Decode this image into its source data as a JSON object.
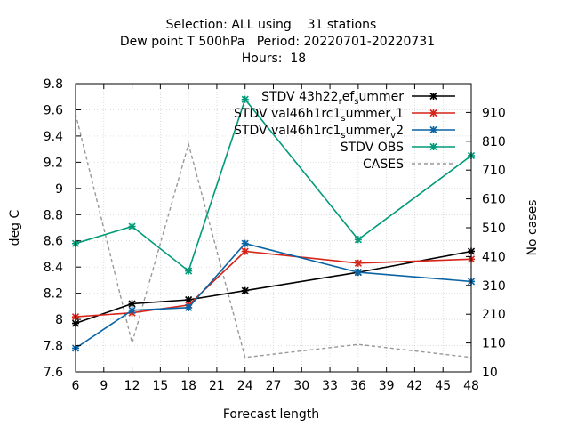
{
  "chart_data": {
    "type": "line",
    "title_lines": [
      "Selection: ALL using    31 stations",
      "Dew point T 500hPa   Period: 20220701-20220731",
      "Hours:  18"
    ],
    "xlabel": "Forecast length",
    "ylabel": "deg C",
    "y2label": "No cases",
    "xlim": [
      6,
      48
    ],
    "ylim": [
      7.6,
      9.8
    ],
    "y2lim": [
      10,
      1010
    ],
    "x_ticks": [
      6,
      9,
      12,
      15,
      18,
      21,
      24,
      27,
      30,
      33,
      36,
      39,
      42,
      45,
      48
    ],
    "y_ticks": [
      7.6,
      7.8,
      8,
      8.2,
      8.4,
      8.6,
      8.8,
      9,
      9.2,
      9.4,
      9.6,
      9.8
    ],
    "y_tick_labels": [
      "7.6",
      "7.8",
      "8",
      "8.2",
      "8.4",
      "8.6",
      "8.8",
      "9",
      "9.2",
      "9.4",
      "9.6",
      "9.8"
    ],
    "y2_ticks": [
      10,
      110,
      210,
      310,
      410,
      510,
      610,
      710,
      810,
      910
    ],
    "legend_position": "top-right",
    "series": [
      {
        "name": "STDV 43h22_ref_summer",
        "legend_parts": [
          [
            "STDV 43h22",
            "n"
          ],
          [
            "r",
            "sub"
          ],
          [
            "ef",
            "n"
          ],
          [
            "s",
            "sub"
          ],
          [
            "ummer",
            "n"
          ]
        ],
        "color": "#000000",
        "marker": "cross",
        "axis": "y",
        "x": [
          6,
          12,
          18,
          24,
          36,
          48
        ],
        "y": [
          7.97,
          8.12,
          8.15,
          8.22,
          8.36,
          8.52
        ]
      },
      {
        "name": "STDV val46h1rc1_summer_v1",
        "legend_parts": [
          [
            "STDV val46h1rc1",
            "n"
          ],
          [
            "s",
            "sub"
          ],
          [
            "ummer",
            "n"
          ],
          [
            "v",
            "sub"
          ],
          [
            "1",
            "n"
          ]
        ],
        "color": "#d62418",
        "marker": "cross",
        "axis": "y",
        "x": [
          6,
          12,
          18,
          24,
          36,
          48
        ],
        "y": [
          8.02,
          8.05,
          8.11,
          8.52,
          8.43,
          8.46
        ]
      },
      {
        "name": "STDV val46h1rc1_summer_v2",
        "legend_parts": [
          [
            "STDV val46h1rc1",
            "n"
          ],
          [
            "s",
            "sub"
          ],
          [
            "ummer",
            "n"
          ],
          [
            "v",
            "sub"
          ],
          [
            "2",
            "n"
          ]
        ],
        "color": "#0a64a4",
        "marker": "cross",
        "axis": "y",
        "x": [
          6,
          12,
          18,
          24,
          36,
          48
        ],
        "y": [
          7.78,
          8.07,
          8.09,
          8.58,
          8.36,
          8.29
        ]
      },
      {
        "name": "STDV OBS",
        "legend_parts": [
          [
            "STDV OBS",
            "n"
          ]
        ],
        "color": "#009a79",
        "marker": "cross",
        "axis": "y",
        "x": [
          6,
          12,
          18,
          24,
          36,
          48
        ],
        "y": [
          8.58,
          8.71,
          8.37,
          9.68,
          8.61,
          9.25
        ]
      },
      {
        "name": "CASES",
        "legend_parts": [
          [
            "CASES",
            "n"
          ]
        ],
        "color": "#999999",
        "marker": "none",
        "dashed": true,
        "axis": "y2",
        "x": [
          6,
          12,
          18,
          24,
          36,
          48
        ],
        "y": [
          905,
          110,
          800,
          60,
          105,
          60
        ]
      }
    ]
  }
}
